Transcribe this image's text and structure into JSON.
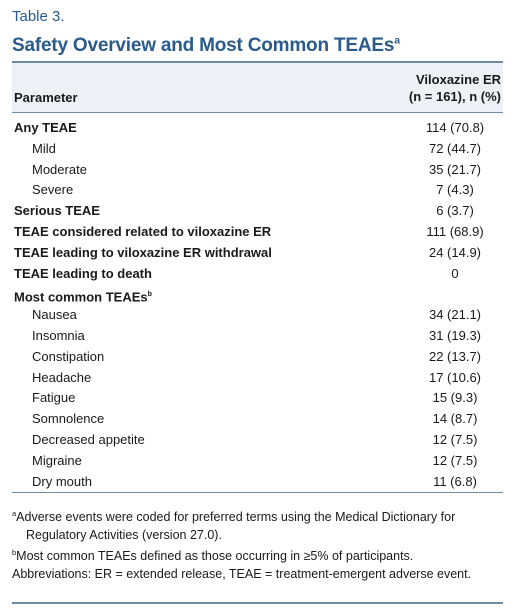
{
  "label": "Table 3.",
  "title": {
    "text": "Safety Overview and Most Common TEAEs",
    "sup": "a"
  },
  "table": {
    "header": {
      "parameter": "Parameter",
      "drug": "Viloxazine ER",
      "n": "(n = 161), n (%)"
    },
    "rows": [
      {
        "label": "Any TEAE",
        "value": "114 (70.8)",
        "sub": [
          {
            "label": "Mild",
            "value": "72 (44.7)"
          },
          {
            "label": "Moderate",
            "value": "35 (21.7)"
          },
          {
            "label": "Severe",
            "value": "7 (4.3)"
          }
        ]
      },
      {
        "label": "Serious TEAE",
        "value": "6 (3.7)"
      },
      {
        "label": "TEAE considered related to viloxazine ER",
        "value": "111 (68.9)"
      },
      {
        "label": "TEAE leading to viloxazine ER withdrawal",
        "value": "24 (14.9)"
      },
      {
        "label": "TEAE leading to death",
        "value": "0"
      },
      {
        "label": "Most common TEAEs",
        "sup": "b",
        "sub": [
          {
            "label": "Nausea",
            "value": "34 (21.1)"
          },
          {
            "label": "Insomnia",
            "value": "31 (19.3)"
          },
          {
            "label": "Constipation",
            "value": "22 (13.7)"
          },
          {
            "label": "Headache",
            "value": "17 (10.6)"
          },
          {
            "label": "Fatigue",
            "value": "15 (9.3)"
          },
          {
            "label": "Somnolence",
            "value": "14 (8.7)"
          },
          {
            "label": "Decreased appetite",
            "value": "12 (7.5)"
          },
          {
            "label": "Migraine",
            "value": "12 (7.5)"
          },
          {
            "label": "Dry mouth",
            "value": "11 (6.8)"
          }
        ]
      }
    ]
  },
  "footnotes": [
    {
      "mark": "a",
      "text": "Adverse events were coded for preferred terms using the Medical Dictionary for Regulatory Activities (version 27.0)."
    },
    {
      "mark": "b",
      "text": "Most common TEAEs defined as those occurring in ≥5% of participants."
    }
  ],
  "abbreviations": "Abbreviations: ER = extended release, TEAE = treatment-emergent adverse event."
}
